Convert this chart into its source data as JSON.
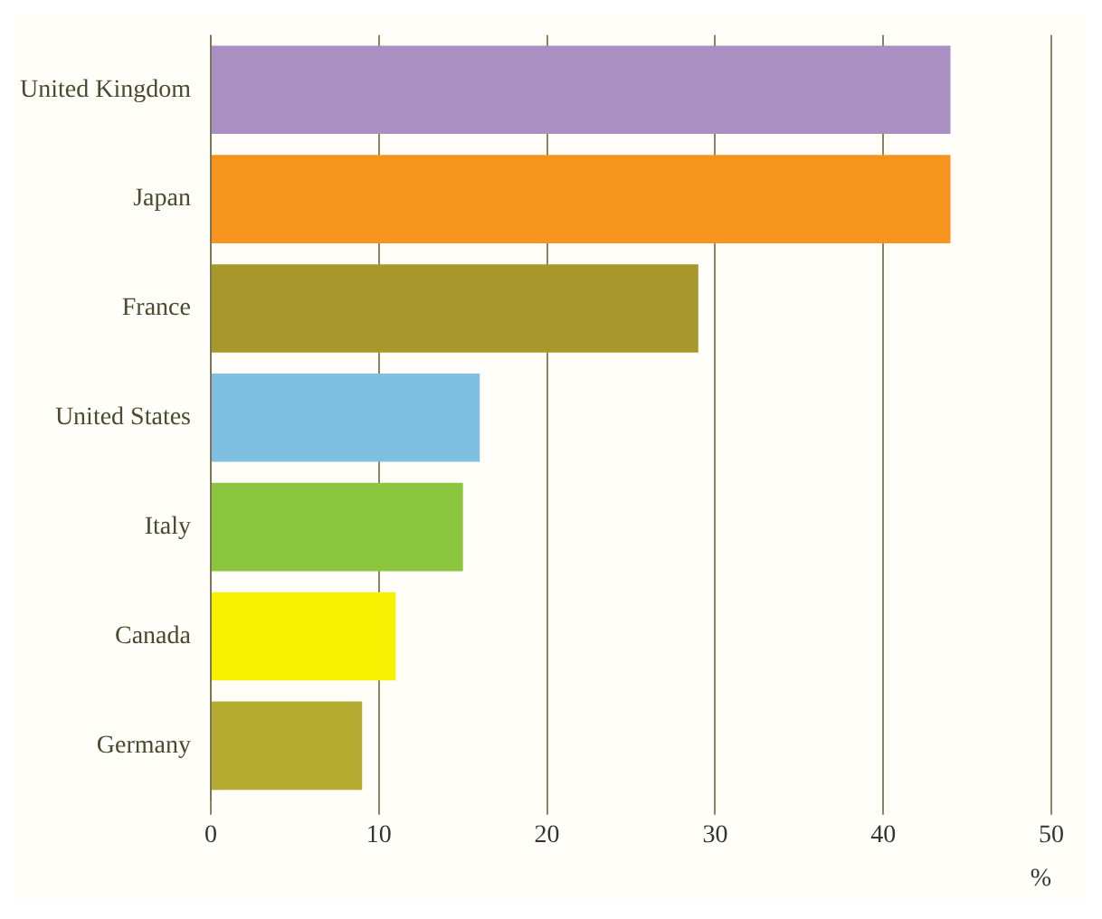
{
  "chart_data": {
    "type": "bar",
    "orientation": "horizontal",
    "xlabel": "%",
    "categories": [
      "United Kingdom",
      "Japan",
      "France",
      "United States",
      "Italy",
      "Canada",
      "Germany"
    ],
    "values": [
      44,
      44,
      29,
      16,
      15,
      11,
      9
    ],
    "colors": [
      "#a98fc2",
      "#f7941d",
      "#a8982c",
      "#7fbfe2",
      "#8cc63f",
      "#f7f000",
      "#b4aa30"
    ],
    "xlim": [
      0,
      50
    ],
    "xticks": [
      0,
      10,
      20,
      30,
      40,
      50
    ],
    "grid": "x",
    "legend": false
  }
}
